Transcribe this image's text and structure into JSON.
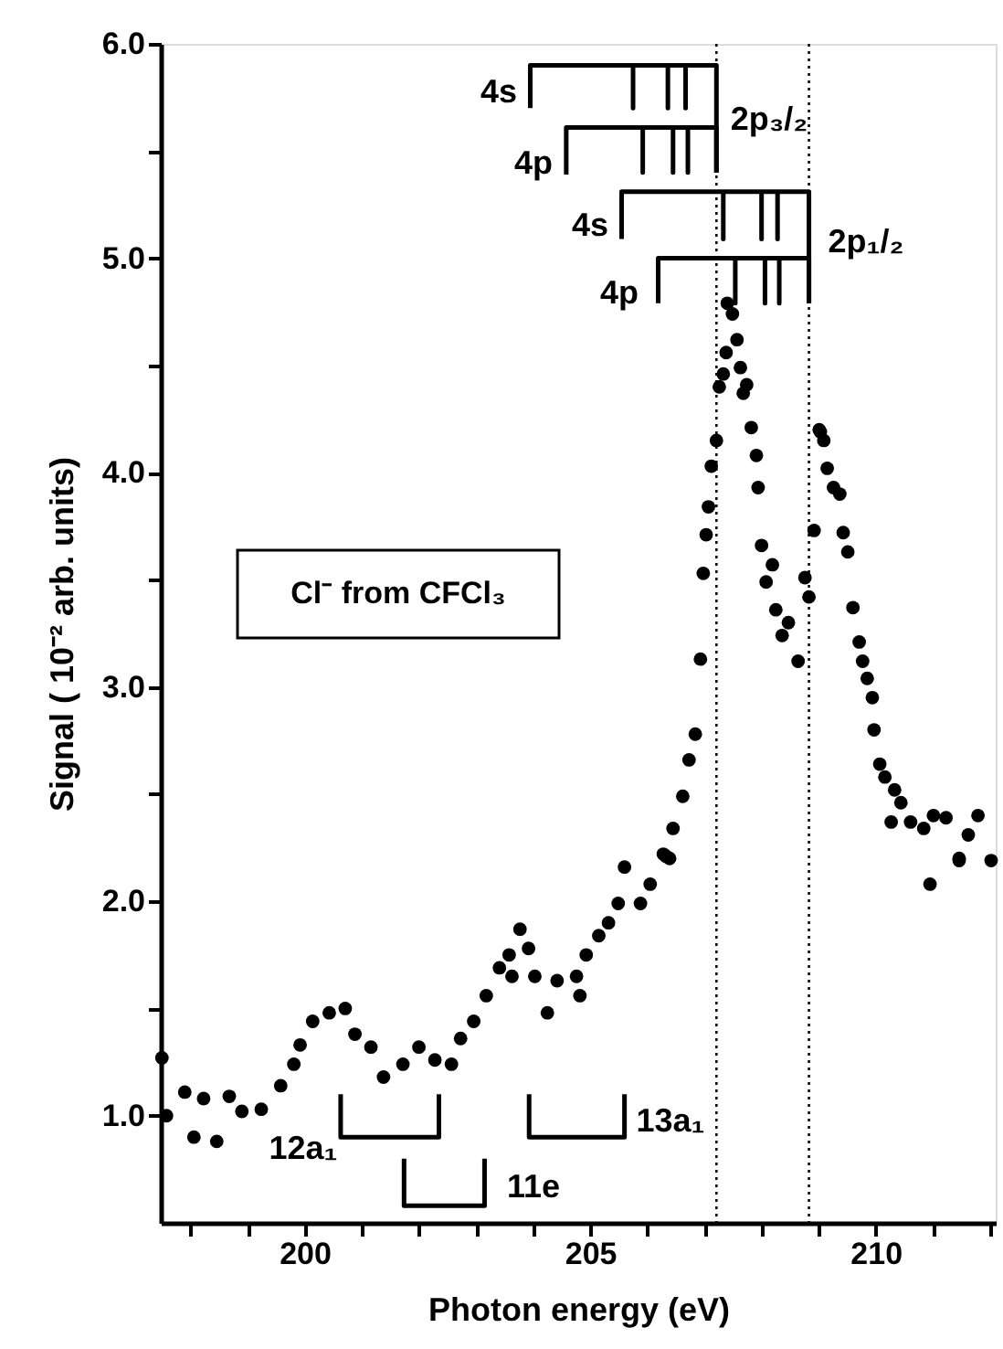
{
  "chart_data": {
    "type": "scatter",
    "xlabel": "Photon energy (eV)",
    "ylabel": "Signal  ( 10⁻² arb. units)",
    "xlim": [
      197.48,
      212.1
    ],
    "ylim": [
      0.5,
      6.0
    ],
    "xticks": [
      {
        "value": 198,
        "label": null
      },
      {
        "value": 199,
        "label": null
      },
      200,
      {
        "value": 201,
        "label": null
      },
      {
        "value": 202,
        "label": null
      },
      {
        "value": 203,
        "label": null
      },
      {
        "value": 204,
        "label": null
      },
      205,
      {
        "value": 206,
        "label": null
      },
      {
        "value": 207,
        "label": null
      },
      {
        "value": 208,
        "label": null
      },
      {
        "value": 209,
        "label": null
      },
      210,
      {
        "value": 211,
        "label": null
      },
      {
        "value": 212,
        "label": null
      }
    ],
    "yticks": [
      {
        "value": 1.0,
        "label": "1.0"
      },
      {
        "value": 1.5,
        "label": null
      },
      {
        "value": 2.0,
        "label": "2.0"
      },
      {
        "value": 2.5,
        "label": null
      },
      {
        "value": 3.0,
        "label": "3.0"
      },
      {
        "value": 3.5,
        "label": null
      },
      {
        "value": 4.0,
        "label": "4.0"
      },
      {
        "value": 4.5,
        "label": null
      },
      {
        "value": 5.0,
        "label": "5.0"
      },
      {
        "value": 5.5,
        "label": null
      },
      {
        "value": 6.0,
        "label": "6.0"
      }
    ],
    "grid": false,
    "series": [
      {
        "color": "#000000",
        "marker": "circle",
        "x": [
          197.5,
          197.58,
          197.9,
          198.06,
          198.23,
          198.46,
          198.68,
          198.9,
          199.24,
          199.58,
          199.81,
          199.92,
          200.14,
          200.43,
          200.71,
          200.88,
          201.16,
          201.38,
          201.72,
          202.0,
          202.28,
          202.57,
          202.73,
          202.96,
          203.18,
          203.41,
          203.58,
          203.63,
          203.77,
          203.92,
          204.03,
          204.25,
          204.42,
          204.76,
          204.82,
          204.93,
          205.15,
          205.32,
          205.49,
          205.6,
          205.88,
          206.05,
          206.28,
          206.39,
          206.33,
          206.45,
          206.62,
          206.73,
          206.84,
          206.93,
          206.98,
          207.03,
          207.07,
          207.12,
          207.21,
          207.26,
          207.33,
          207.38,
          207.4,
          207.49,
          207.57,
          207.63,
          207.68,
          207.74,
          207.82,
          207.91,
          207.94,
          208.0,
          208.08,
          208.19,
          208.25,
          208.36,
          208.47,
          208.64,
          208.76,
          208.83,
          208.92,
          209.01,
          209.03,
          209.09,
          209.15,
          209.26,
          209.37,
          209.43,
          209.51,
          209.6,
          209.71,
          209.77,
          209.85,
          209.94,
          209.97,
          210.07,
          210.16,
          210.27,
          210.33,
          210.44,
          210.61,
          210.84,
          210.95,
          211.01,
          211.23,
          211.46,
          211.46,
          211.62,
          211.79,
          212.02
        ],
        "values": [
          1.27,
          1.0,
          1.11,
          0.9,
          1.08,
          0.88,
          1.09,
          1.02,
          1.03,
          1.14,
          1.24,
          1.33,
          1.44,
          1.48,
          1.5,
          1.38,
          1.32,
          1.18,
          1.24,
          1.32,
          1.26,
          1.24,
          1.36,
          1.44,
          1.56,
          1.69,
          1.75,
          1.65,
          1.87,
          1.78,
          1.65,
          1.48,
          1.63,
          1.65,
          1.56,
          1.75,
          1.84,
          1.9,
          1.99,
          2.16,
          1.99,
          2.08,
          2.22,
          2.2,
          2.21,
          2.34,
          2.49,
          2.66,
          2.78,
          3.13,
          3.53,
          3.71,
          3.84,
          4.03,
          4.15,
          4.4,
          4.46,
          4.56,
          4.79,
          4.74,
          4.62,
          4.49,
          4.37,
          4.41,
          4.21,
          4.08,
          3.93,
          3.66,
          3.49,
          3.57,
          3.36,
          3.24,
          3.3,
          3.12,
          3.51,
          3.42,
          3.73,
          4.2,
          4.19,
          4.15,
          4.02,
          3.93,
          3.9,
          3.72,
          3.63,
          3.37,
          3.21,
          3.12,
          3.04,
          2.95,
          2.8,
          2.64,
          2.58,
          2.37,
          2.52,
          2.46,
          2.37,
          2.34,
          2.08,
          2.4,
          2.39,
          2.19,
          2.2,
          2.31,
          2.4,
          2.19
        ]
      },
      {
        "type": "line",
        "color": "#000000",
        "line_style": "solid",
        "x": [
          203.95,
          203.95,
          205.75,
          205.75,
          205.75,
          206.36,
          206.36,
          206.36,
          206.67,
          206.67,
          206.67,
          207.21,
          207.21
        ],
        "values": [
          5.7,
          5.9,
          5.9,
          5.7,
          5.9,
          5.9,
          5.7,
          5.9,
          5.9,
          5.7,
          5.9,
          5.9,
          5.4
        ]
      },
      {
        "type": "line",
        "color": "#000000",
        "line_style": "solid",
        "x": [
          204.58,
          204.58,
          205.92,
          205.92,
          205.92,
          206.45,
          206.45,
          206.45,
          206.71,
          206.71,
          206.71,
          207.21,
          207.21
        ],
        "values": [
          5.39,
          5.61,
          5.61,
          5.4,
          5.61,
          5.61,
          5.4,
          5.61,
          5.61,
          5.4,
          5.61,
          5.61,
          5.4
        ]
      },
      {
        "type": "line",
        "color": "#000000",
        "line_style": "solid",
        "x": [
          205.55,
          205.55,
          207.33,
          207.33,
          207.33,
          208.0,
          208.0,
          208.0,
          208.28,
          208.28,
          208.28,
          208.83,
          208.83
        ],
        "values": [
          5.09,
          5.31,
          5.31,
          5.09,
          5.31,
          5.31,
          5.09,
          5.31,
          5.31,
          5.09,
          5.31,
          5.31,
          4.79
        ]
      },
      {
        "type": "line",
        "color": "#000000",
        "line_style": "solid",
        "x": [
          206.19,
          206.19,
          207.54,
          207.54,
          207.54,
          208.06,
          208.06,
          208.06,
          208.31,
          208.31,
          208.31,
          208.83,
          208.83
        ],
        "values": [
          4.79,
          5.0,
          5.0,
          4.79,
          5.0,
          5.0,
          4.79,
          5.0,
          5.0,
          4.79,
          5.0,
          5.0,
          4.79
        ]
      },
      {
        "type": "line",
        "color": "#000000",
        "line_style": "solid",
        "x": [
          200.63,
          200.63,
          202.35,
          202.35
        ],
        "values": [
          1.1,
          0.9,
          0.9,
          1.1
        ]
      },
      {
        "type": "line",
        "color": "#000000",
        "line_style": "solid",
        "x": [
          201.74,
          201.74,
          203.15,
          203.15
        ],
        "values": [
          0.8,
          0.58,
          0.58,
          0.8
        ]
      },
      {
        "type": "line",
        "color": "#000000",
        "line_style": "solid",
        "x": [
          203.93,
          203.93,
          205.6,
          205.6
        ],
        "values": [
          1.1,
          0.9,
          0.9,
          1.1
        ]
      }
    ],
    "ref_lines": [
      {
        "axis": "x",
        "value": 207.21,
        "color": "#000000",
        "line_style": "dotted"
      },
      {
        "axis": "x",
        "value": 208.83,
        "color": "#000000",
        "line_style": "dotted"
      }
    ],
    "annotations": [
      "4s",
      "4p",
      "2p₃/₂",
      "4s",
      "4p",
      "2p₁/₂",
      "12a₁",
      "11e",
      "13a₁",
      "Cl⁻ from CFCl₃"
    ]
  }
}
